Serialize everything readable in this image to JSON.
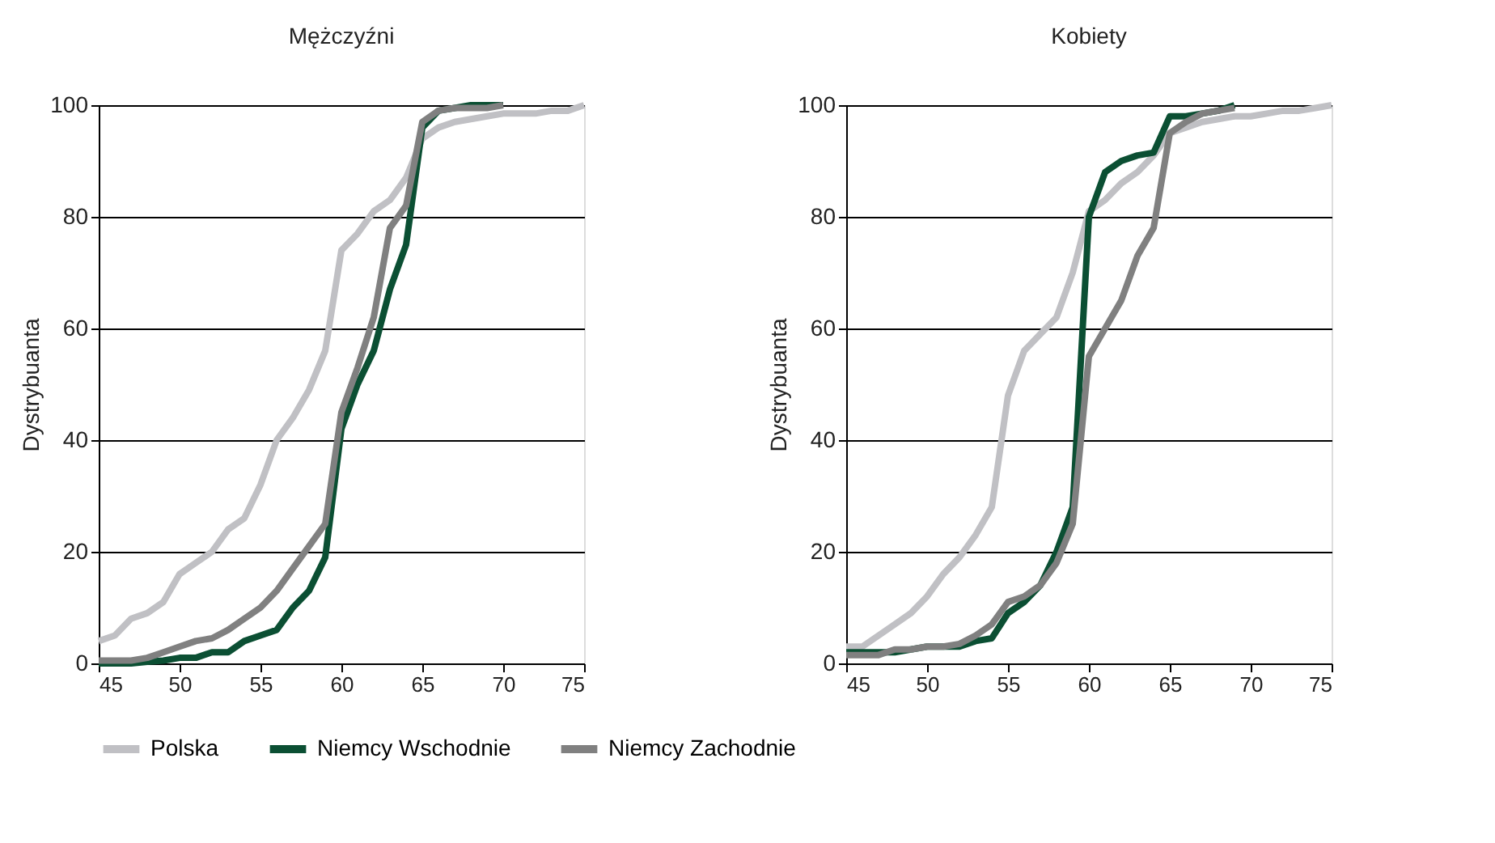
{
  "chart_data": [
    {
      "type": "line",
      "title": "Mężczyźni",
      "ylabel": "Dystrybuanta",
      "xlim": [
        45,
        75
      ],
      "xticks": [
        45,
        50,
        55,
        60,
        65,
        70,
        75
      ],
      "ylim": [
        0,
        100
      ],
      "yticks": [
        0,
        20,
        40,
        60,
        80,
        100
      ],
      "grid": "y",
      "legend": "bottom",
      "marker": "none",
      "line_style": "solid",
      "series": [
        {
          "name": "Polska",
          "color": "#c0c0c4",
          "x": [
            45,
            46,
            47,
            48,
            49,
            50,
            51,
            52,
            53,
            54,
            55,
            56,
            57,
            58,
            59,
            60,
            61,
            62,
            63,
            64,
            65,
            66,
            67,
            68,
            69,
            70,
            71,
            72,
            73,
            74,
            75
          ],
          "values": [
            4,
            5,
            8,
            9,
            11,
            16,
            18,
            20,
            24,
            26,
            32,
            40,
            44,
            49,
            56,
            74,
            77,
            81,
            83,
            87,
            94,
            96,
            97,
            97.5,
            98,
            98.5,
            98.5,
            98.5,
            99,
            99,
            100
          ]
        },
        {
          "name": "Niemcy Wschodnie",
          "color": "#0b4f33",
          "x": [
            45,
            46,
            47,
            48,
            49,
            50,
            51,
            52,
            53,
            54,
            55,
            56,
            57,
            58,
            59,
            60,
            61,
            62,
            63,
            64,
            65,
            66,
            67,
            68,
            69,
            70
          ],
          "values": [
            0,
            0,
            0,
            0.3,
            0.5,
            1,
            1,
            2,
            2,
            4,
            5,
            6,
            10,
            13,
            19,
            42,
            50,
            56,
            67,
            75,
            96,
            99,
            99.5,
            100,
            100,
            100
          ]
        },
        {
          "name": "Niemcy Zachodnie",
          "color": "#808080",
          "x": [
            45,
            46,
            47,
            48,
            49,
            50,
            51,
            52,
            53,
            54,
            55,
            56,
            57,
            58,
            59,
            60,
            61,
            62,
            63,
            64,
            65,
            66,
            67,
            68,
            69,
            70
          ],
          "values": [
            0.5,
            0.5,
            0.5,
            1,
            2,
            3,
            4,
            4.5,
            6,
            8,
            10,
            13,
            17,
            21,
            25,
            45,
            53,
            62,
            78,
            82,
            97,
            99,
            99.5,
            99.5,
            99.5,
            100
          ]
        }
      ]
    },
    {
      "type": "line",
      "title": "Kobiety",
      "ylabel": "Dystrybuanta",
      "xlim": [
        45,
        75
      ],
      "xticks": [
        45,
        50,
        55,
        60,
        65,
        70,
        75
      ],
      "ylim": [
        0,
        100
      ],
      "yticks": [
        0,
        20,
        40,
        60,
        80,
        100
      ],
      "grid": "y",
      "legend": "bottom",
      "marker": "none",
      "line_style": "solid",
      "series": [
        {
          "name": "Polska",
          "color": "#c0c0c4",
          "x": [
            45,
            46,
            47,
            48,
            49,
            50,
            51,
            52,
            53,
            54,
            55,
            56,
            57,
            58,
            59,
            60,
            61,
            62,
            63,
            64,
            65,
            66,
            67,
            68,
            69,
            70,
            71,
            72,
            73,
            74,
            75
          ],
          "values": [
            3,
            3,
            5,
            7,
            9,
            12,
            16,
            19,
            23,
            28,
            48,
            56,
            59,
            62,
            70,
            81,
            83,
            86,
            88,
            91,
            95,
            96,
            97,
            97.5,
            98,
            98,
            98.5,
            99,
            99,
            99.5,
            100
          ]
        },
        {
          "name": "Niemcy Wschodnie",
          "color": "#0b4f33",
          "x": [
            45,
            46,
            47,
            48,
            49,
            50,
            51,
            52,
            53,
            54,
            55,
            56,
            57,
            58,
            59,
            60,
            61,
            62,
            63,
            64,
            65,
            66,
            67,
            68,
            69
          ],
          "values": [
            2,
            2,
            2,
            2,
            2.5,
            3,
            3,
            3,
            4,
            4.5,
            9,
            11,
            14,
            20,
            28,
            80,
            88,
            90,
            91,
            91.5,
            98,
            98,
            98.5,
            99,
            100
          ]
        },
        {
          "name": "Niemcy Zachodnie",
          "color": "#808080",
          "x": [
            45,
            46,
            47,
            48,
            49,
            50,
            51,
            52,
            53,
            54,
            55,
            56,
            57,
            58,
            59,
            60,
            61,
            62,
            63,
            64,
            65,
            66,
            67,
            68,
            69
          ],
          "values": [
            1.5,
            1.5,
            1.5,
            2.5,
            2.5,
            3,
            3,
            3.5,
            5,
            7,
            11,
            12,
            14,
            18,
            25,
            55,
            60,
            65,
            73,
            78,
            95,
            97,
            98.5,
            99,
            99.5
          ]
        }
      ]
    }
  ]
}
